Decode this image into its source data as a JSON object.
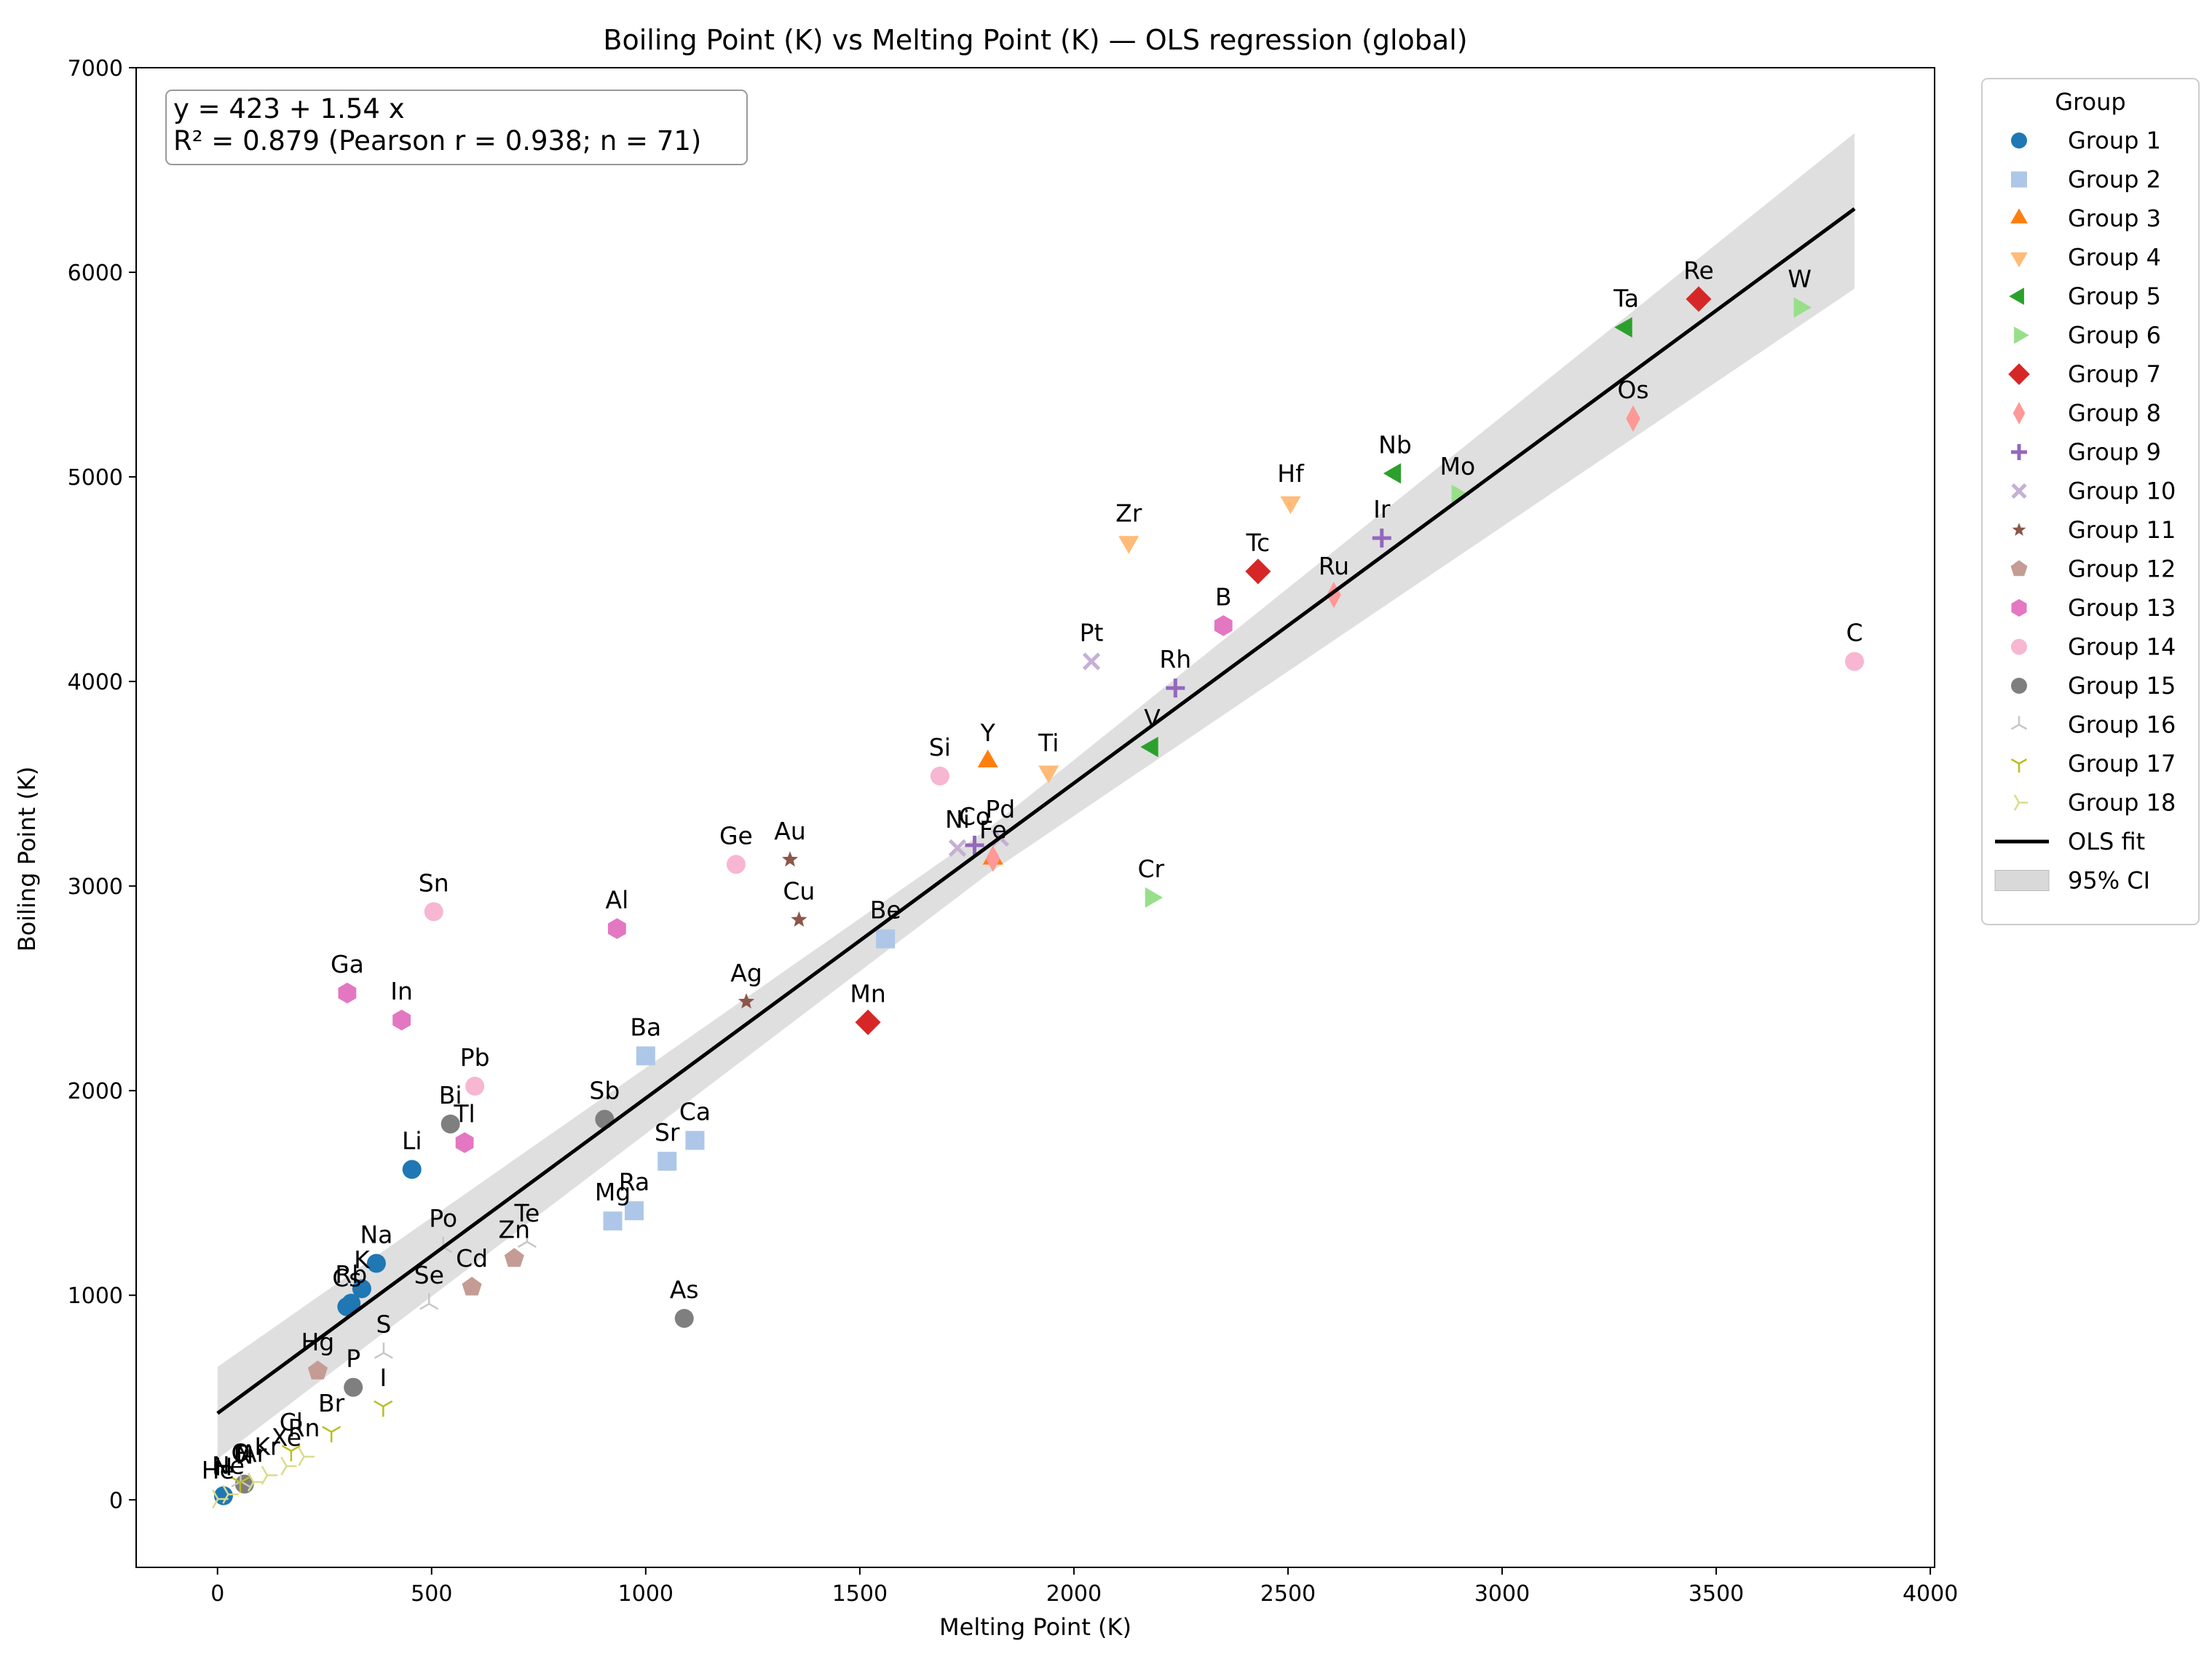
{
  "chart_data": {
    "type": "scatter",
    "title": "Boiling Point (K) vs Melting Point (K) — OLS regression (global)",
    "xlabel": "Melting Point (K)",
    "ylabel": "Boiling Point (K)",
    "xlim": [
      -190,
      4010
    ],
    "ylim": [
      -330,
      7000
    ],
    "xticks": [
      0,
      500,
      1000,
      1500,
      2000,
      2500,
      3000,
      3500,
      4000
    ],
    "yticks": [
      0,
      1000,
      2000,
      3000,
      4000,
      5000,
      6000,
      7000
    ],
    "grid": false,
    "annotation": {
      "line1": "y = 423 + 1.54 x",
      "line2": "R² = 0.879  (Pearson r = 0.938; n = 71)",
      "placement": "top-left"
    },
    "regression": {
      "intercept": 423,
      "slope": 1.54,
      "x_range": [
        0,
        3823
      ],
      "ci_upper": [
        [
          0,
          650
        ],
        [
          1800,
          3280
        ],
        [
          3823,
          6680
        ]
      ],
      "ci_lower": [
        [
          0,
          200
        ],
        [
          1800,
          3060
        ],
        [
          3823,
          5920
        ]
      ],
      "color": "#000000",
      "ci_color": "#d9d9d9"
    },
    "legend": {
      "title": "Group",
      "placement": "outside-right",
      "fit_label": "OLS fit",
      "ci_label": "95% CI"
    },
    "series": [
      {
        "name": "Group 1",
        "color": "#1f77b4",
        "marker": "circle",
        "points": [
          {
            "label": "H",
            "x": 14,
            "y": 20
          },
          {
            "label": "Li",
            "x": 454,
            "y": 1615
          },
          {
            "label": "Na",
            "x": 371,
            "y": 1156
          },
          {
            "label": "K",
            "x": 337,
            "y": 1032
          },
          {
            "label": "Rb",
            "x": 312,
            "y": 961
          },
          {
            "label": "Cs",
            "x": 302,
            "y": 944
          }
        ]
      },
      {
        "name": "Group 2",
        "color": "#aec7e8",
        "marker": "square",
        "points": [
          {
            "label": "Be",
            "x": 1560,
            "y": 2742
          },
          {
            "label": "Mg",
            "x": 923,
            "y": 1363
          },
          {
            "label": "Ca",
            "x": 1115,
            "y": 1757
          },
          {
            "label": "Sr",
            "x": 1050,
            "y": 1655
          },
          {
            "label": "Ba",
            "x": 1000,
            "y": 2170
          },
          {
            "label": "Ra",
            "x": 973,
            "y": 1413
          }
        ]
      },
      {
        "name": "Group 3",
        "color": "#ff7f0e",
        "marker": "triangle-up",
        "points": [
          {
            "label": "Y",
            "x": 1799,
            "y": 3609
          },
          {
            "label": "Fe",
            "x": 1811,
            "y": 3134
          }
        ]
      },
      {
        "name": "Group 4",
        "color": "#ffbb78",
        "marker": "triangle-down",
        "points": [
          {
            "label": "Ti",
            "x": 1941,
            "y": 3560
          },
          {
            "label": "Zr",
            "x": 2128,
            "y": 4682
          },
          {
            "label": "Hf",
            "x": 2506,
            "y": 4876
          }
        ]
      },
      {
        "name": "Group 5",
        "color": "#2ca02c",
        "marker": "triangle-left",
        "points": [
          {
            "label": "V",
            "x": 2183,
            "y": 3680
          },
          {
            "label": "Nb",
            "x": 2750,
            "y": 5017
          },
          {
            "label": "Ta",
            "x": 3290,
            "y": 5731
          }
        ]
      },
      {
        "name": "Group 6",
        "color": "#98df8a",
        "marker": "triangle-right",
        "points": [
          {
            "label": "Cr",
            "x": 2180,
            "y": 2944
          },
          {
            "label": "Mo",
            "x": 2896,
            "y": 4912
          },
          {
            "label": "W",
            "x": 3695,
            "y": 5828
          }
        ]
      },
      {
        "name": "Group 7",
        "color": "#d62728",
        "marker": "diamond",
        "points": [
          {
            "label": "Mn",
            "x": 1519,
            "y": 2334
          },
          {
            "label": "Tc",
            "x": 2430,
            "y": 4538
          },
          {
            "label": "Re",
            "x": 3459,
            "y": 5869
          }
        ]
      },
      {
        "name": "Group 8",
        "color": "#ff9896",
        "marker": "thin-diamond",
        "points": [
          {
            "label": "Ru",
            "x": 2607,
            "y": 4423
          },
          {
            "label": "Os",
            "x": 3306,
            "y": 5285
          },
          {
            "label": "",
            "x": 1811,
            "y": 3134
          }
        ]
      },
      {
        "name": "Group 9",
        "color": "#9467bd",
        "marker": "plus",
        "points": [
          {
            "label": "Co",
            "x": 1768,
            "y": 3200
          },
          {
            "label": "Rh",
            "x": 2237,
            "y": 3968
          },
          {
            "label": "Ir",
            "x": 2719,
            "y": 4701
          }
        ]
      },
      {
        "name": "Group 10",
        "color": "#c5b0d5",
        "marker": "x",
        "points": [
          {
            "label": "Ni",
            "x": 1728,
            "y": 3186
          },
          {
            "label": "Pd",
            "x": 1828,
            "y": 3236
          },
          {
            "label": "Pt",
            "x": 2041,
            "y": 4098
          }
        ]
      },
      {
        "name": "Group 11",
        "color": "#8c564b",
        "marker": "star",
        "points": [
          {
            "label": "Cu",
            "x": 1358,
            "y": 2835
          },
          {
            "label": "Ag",
            "x": 1235,
            "y": 2435
          },
          {
            "label": "Au",
            "x": 1337,
            "y": 3129
          }
        ]
      },
      {
        "name": "Group 12",
        "color": "#c49c94",
        "marker": "pentagon",
        "points": [
          {
            "label": "Zn",
            "x": 693,
            "y": 1180
          },
          {
            "label": "Cd",
            "x": 594,
            "y": 1040
          },
          {
            "label": "Hg",
            "x": 234,
            "y": 630
          }
        ]
      },
      {
        "name": "Group 13",
        "color": "#e377c2",
        "marker": "hexagon",
        "points": [
          {
            "label": "B",
            "x": 2349,
            "y": 4273
          },
          {
            "label": "Al",
            "x": 933,
            "y": 2792
          },
          {
            "label": "Ga",
            "x": 303,
            "y": 2477
          },
          {
            "label": "In",
            "x": 430,
            "y": 2345
          },
          {
            "label": "Tl",
            "x": 577,
            "y": 1746
          }
        ]
      },
      {
        "name": "Group 14",
        "color": "#f7b6d2",
        "marker": "circle",
        "points": [
          {
            "label": "C",
            "x": 3823,
            "y": 4098
          },
          {
            "label": "Si",
            "x": 1687,
            "y": 3538
          },
          {
            "label": "Ge",
            "x": 1211,
            "y": 3106
          },
          {
            "label": "Sn",
            "x": 505,
            "y": 2875
          },
          {
            "label": "Pb",
            "x": 601,
            "y": 2022
          }
        ]
      },
      {
        "name": "Group 15",
        "color": "#7f7f7f",
        "marker": "circle",
        "points": [
          {
            "label": "N",
            "x": 63,
            "y": 77
          },
          {
            "label": "P",
            "x": 317,
            "y": 550
          },
          {
            "label": "As",
            "x": 1090,
            "y": 887
          },
          {
            "label": "Sb",
            "x": 904,
            "y": 1860
          },
          {
            "label": "Bi",
            "x": 544,
            "y": 1837
          }
        ]
      },
      {
        "name": "Group 16",
        "color": "#c7c7c7",
        "marker": "tri-down",
        "points": [
          {
            "label": "O",
            "x": 54,
            "y": 90
          },
          {
            "label": "S",
            "x": 388,
            "y": 718
          },
          {
            "label": "Se",
            "x": 494,
            "y": 958
          },
          {
            "label": "Te",
            "x": 723,
            "y": 1261
          },
          {
            "label": "Po",
            "x": 527,
            "y": 1235
          }
        ]
      },
      {
        "name": "Group 17",
        "color": "#bcbd22",
        "marker": "tri-up",
        "points": [
          {
            "label": "F",
            "x": 53,
            "y": 85
          },
          {
            "label": "Cl",
            "x": 172,
            "y": 239
          },
          {
            "label": "Br",
            "x": 266,
            "y": 332
          },
          {
            "label": "I",
            "x": 387,
            "y": 457
          }
        ]
      },
      {
        "name": "Group 18",
        "color": "#dbdb8d",
        "marker": "tri-left",
        "points": [
          {
            "label": "He",
            "x": 1,
            "y": 4
          },
          {
            "label": "Ne",
            "x": 25,
            "y": 27
          },
          {
            "label": "Ar",
            "x": 84,
            "y": 87
          },
          {
            "label": "Kr",
            "x": 116,
            "y": 120
          },
          {
            "label": "Xe",
            "x": 161,
            "y": 165
          },
          {
            "label": "Rn",
            "x": 202,
            "y": 211
          }
        ]
      }
    ]
  }
}
